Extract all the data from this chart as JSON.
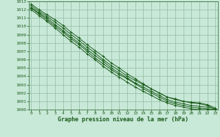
{
  "title": "Graphe pression niveau de la mer (hPa)",
  "x_values": [
    0,
    1,
    2,
    3,
    4,
    5,
    6,
    7,
    8,
    9,
    10,
    11,
    12,
    13,
    14,
    15,
    16,
    17,
    18,
    19,
    20,
    21,
    22,
    23
  ],
  "lines": [
    [
      1012.5,
      1011.8,
      1011.2,
      1010.5,
      1009.8,
      1009.0,
      1008.3,
      1007.5,
      1006.8,
      1006.0,
      1005.3,
      1004.7,
      1004.0,
      1003.5,
      1003.0,
      1002.5,
      1002.0,
      1001.5,
      1001.3,
      1001.0,
      1000.8,
      1000.7,
      1000.5,
      1000.0
    ],
    [
      1012.2,
      1011.5,
      1010.8,
      1010.0,
      1009.3,
      1008.5,
      1007.8,
      1007.0,
      1006.2,
      1005.5,
      1004.8,
      1004.2,
      1003.7,
      1003.1,
      1002.5,
      1002.0,
      1001.5,
      1001.0,
      1000.7,
      1000.5,
      1000.3,
      1000.2,
      1000.1,
      1000.0
    ],
    [
      1012.7,
      1012.0,
      1011.4,
      1010.8,
      1010.1,
      1009.3,
      1008.6,
      1007.8,
      1007.1,
      1006.4,
      1005.6,
      1005.0,
      1004.3,
      1003.7,
      1003.1,
      1002.5,
      1002.0,
      1001.5,
      1001.2,
      1001.0,
      1000.9,
      1000.8,
      1000.6,
      1000.2
    ],
    [
      1012.0,
      1011.3,
      1010.6,
      1009.8,
      1009.0,
      1008.2,
      1007.5,
      1006.7,
      1006.0,
      1005.2,
      1004.5,
      1003.9,
      1003.3,
      1002.7,
      1002.2,
      1001.7,
      1001.2,
      1000.8,
      1000.5,
      1000.3,
      1000.1,
      1000.0,
      1000.0,
      1000.0
    ],
    [
      1012.3,
      1011.6,
      1011.0,
      1010.2,
      1009.5,
      1008.7,
      1008.0,
      1007.2,
      1006.5,
      1005.8,
      1005.0,
      1004.4,
      1003.8,
      1003.2,
      1002.7,
      1002.2,
      1001.7,
      1001.2,
      1000.9,
      1000.7,
      1000.5,
      1000.4,
      1000.3,
      1000.1
    ]
  ],
  "ylim": [
    1000,
    1013
  ],
  "xlim_min": -0.3,
  "xlim_max": 23.3,
  "yticks": [
    1000,
    1001,
    1002,
    1003,
    1004,
    1005,
    1006,
    1007,
    1008,
    1009,
    1010,
    1011,
    1012,
    1013
  ],
  "xticks": [
    0,
    1,
    2,
    3,
    4,
    5,
    6,
    7,
    8,
    9,
    10,
    11,
    12,
    13,
    14,
    15,
    16,
    17,
    18,
    19,
    20,
    21,
    22,
    23
  ],
  "line_color": "#1a5c1a",
  "bg_color": "#c8e8d8",
  "grid_color": "#90b8a0",
  "tick_label_color": "#1a5c1a",
  "title_color": "#1a5c1a",
  "fig_bg": "#c8e8d8",
  "tick_fontsize": 4.5,
  "xlabel_fontsize": 6.0,
  "linewidth": 0.7,
  "markersize": 3.5,
  "markeredgewidth": 0.7
}
